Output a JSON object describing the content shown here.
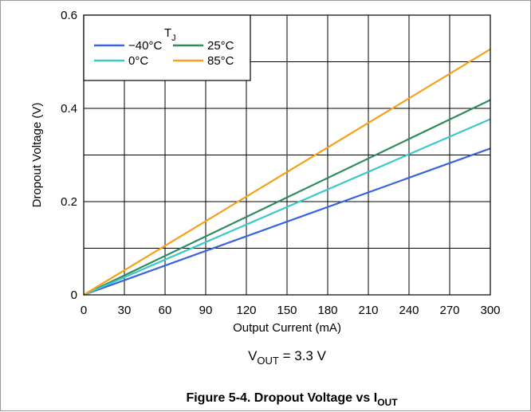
{
  "chart_data": {
    "type": "line",
    "xlabel": "Output Current (mA)",
    "ylabel": "Dropout Voltage (V)",
    "xlim": [
      0,
      300
    ],
    "ylim": [
      0,
      0.6
    ],
    "x_ticks": [
      "0",
      "30",
      "60",
      "90",
      "120",
      "150",
      "180",
      "210",
      "240",
      "270",
      "300"
    ],
    "y_ticks": [
      "0",
      "0.2",
      "0.4",
      "0.6"
    ],
    "grid": true,
    "legend": {
      "title_main": "T",
      "title_sub": "J",
      "placement": "top-left"
    },
    "series": [
      {
        "name": "−40°C",
        "color": "#3a63e0",
        "x": [
          0,
          300
        ],
        "y": [
          0,
          0.314
        ]
      },
      {
        "name": "25°C",
        "color": "#2e8b5e",
        "x": [
          0,
          300
        ],
        "y": [
          0,
          0.418
        ]
      },
      {
        "name": "0°C",
        "color": "#3cc8c8",
        "x": [
          0,
          300
        ],
        "y": [
          0,
          0.377
        ]
      },
      {
        "name": "85°C",
        "color": "#f5a21b",
        "x": [
          0,
          300
        ],
        "y": [
          0,
          0.527
        ]
      }
    ],
    "condition": {
      "main": "V",
      "sub": "OUT",
      "rest": " = 3.3 V"
    },
    "caption": {
      "main": "Figure 5-4. Dropout Voltage vs I",
      "sub": "OUT"
    }
  }
}
